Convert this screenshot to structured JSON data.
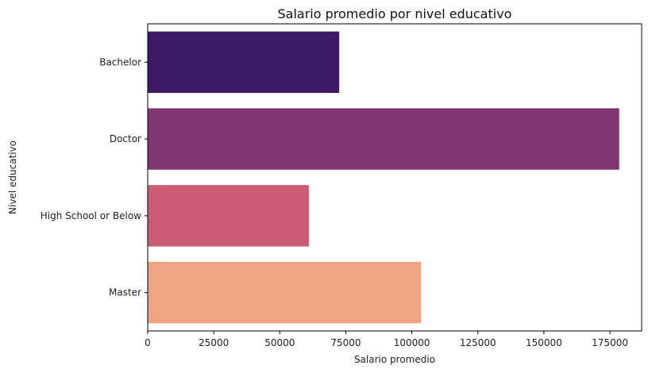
{
  "chart_data": {
    "type": "bar",
    "orientation": "horizontal",
    "title": "Salario promedio por nivel educativo",
    "xlabel": "Salario promedio",
    "ylabel": "Nivel educativo",
    "categories": [
      "Bachelor",
      "Doctor",
      "High School or Below",
      "Master"
    ],
    "values": [
      72500,
      178500,
      61000,
      103500
    ],
    "colors": [
      "#3c1a65",
      "#823573",
      "#cc5c73",
      "#eda681"
    ],
    "xlim": [
      0,
      187000
    ],
    "xticks": [
      0,
      25000,
      50000,
      75000,
      100000,
      125000,
      150000,
      175000
    ],
    "grid": false,
    "legend": "none"
  }
}
